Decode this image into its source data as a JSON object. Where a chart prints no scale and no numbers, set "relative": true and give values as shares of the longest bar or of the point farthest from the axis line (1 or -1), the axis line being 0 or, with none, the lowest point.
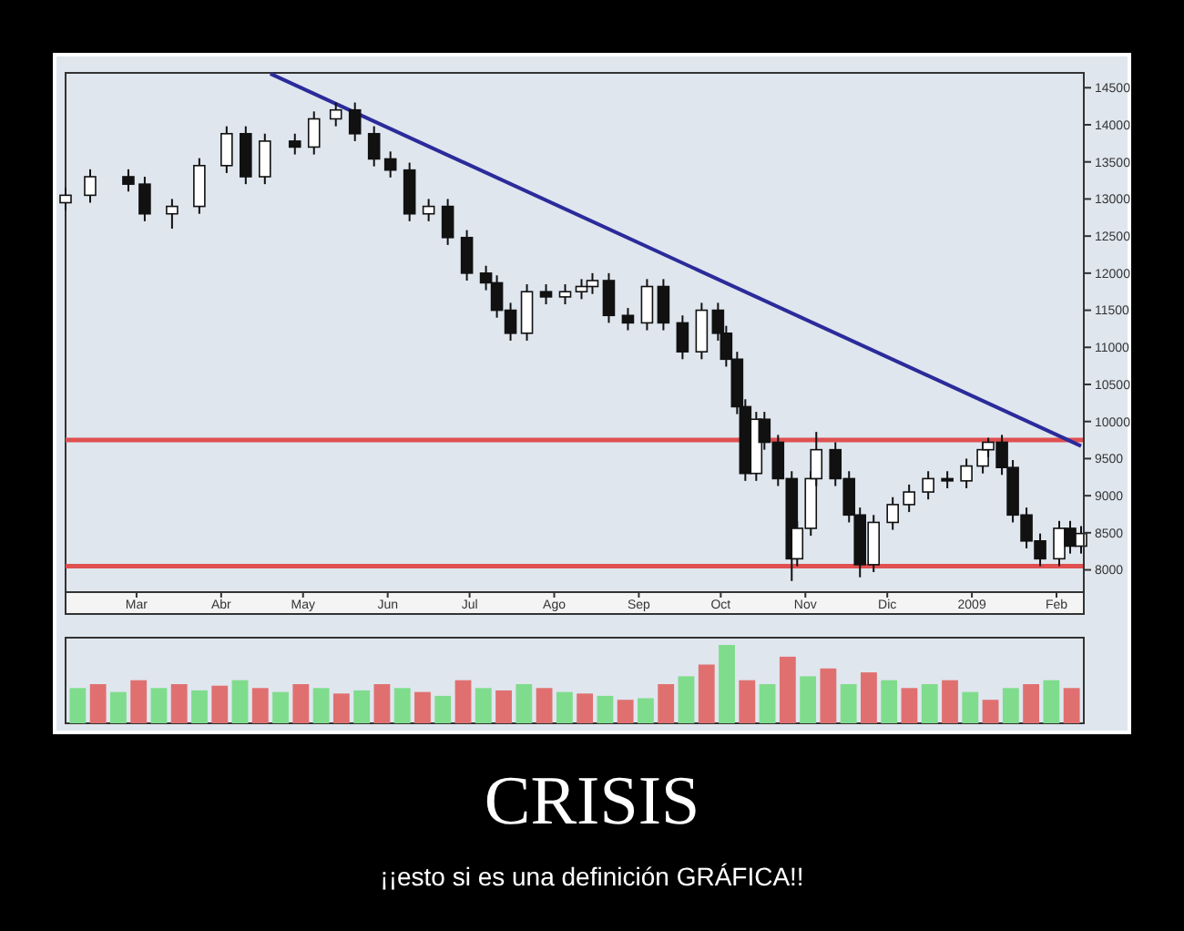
{
  "chart_data": [
    {
      "type": "candlestick",
      "title": "CRISIS",
      "subtitle": "¡¡esto si es una definición GRÁFICA!!",
      "x": [
        "2008-02-04",
        "2008-02-13",
        "2008-02-27",
        "2008-03-04",
        "2008-03-14",
        "2008-03-24",
        "2008-04-03",
        "2008-04-10",
        "2008-04-17",
        "2008-04-28",
        "2008-05-05",
        "2008-05-13",
        "2008-05-20",
        "2008-05-27",
        "2008-06-02",
        "2008-06-09",
        "2008-06-16",
        "2008-06-23",
        "2008-06-30",
        "2008-07-07",
        "2008-07-11",
        "2008-07-16",
        "2008-07-22",
        "2008-07-29",
        "2008-08-05",
        "2008-08-11",
        "2008-08-15",
        "2008-08-21",
        "2008-08-28",
        "2008-09-04",
        "2008-09-10",
        "2008-09-17",
        "2008-09-24",
        "2008-09-30",
        "2008-10-03",
        "2008-10-07",
        "2008-10-10",
        "2008-10-14",
        "2008-10-17",
        "2008-10-22",
        "2008-10-27",
        "2008-10-29",
        "2008-11-03",
        "2008-11-05",
        "2008-11-12",
        "2008-11-17",
        "2008-11-21",
        "2008-11-26",
        "2008-12-03",
        "2008-12-09",
        "2008-12-16",
        "2008-12-23",
        "2008-12-30",
        "2009-01-05",
        "2009-01-07",
        "2009-01-12",
        "2009-01-16",
        "2009-01-21",
        "2009-01-26",
        "2009-02-02",
        "2009-02-06",
        "2009-02-10"
      ],
      "ohlc": [
        [
          12950,
          13150,
          12850,
          13050
        ],
        [
          13050,
          13400,
          12950,
          13300
        ],
        [
          13300,
          13400,
          13100,
          13200
        ],
        [
          13200,
          13300,
          12700,
          12800
        ],
        [
          12800,
          13000,
          12600,
          12900
        ],
        [
          12900,
          13550,
          12800,
          13450
        ],
        [
          13450,
          13980,
          13350,
          13880
        ],
        [
          13880,
          13980,
          13200,
          13300
        ],
        [
          13300,
          13880,
          13200,
          13780
        ],
        [
          13780,
          13880,
          13600,
          13700
        ],
        [
          13700,
          14180,
          13600,
          14080
        ],
        [
          14080,
          14300,
          13980,
          14200
        ],
        [
          14200,
          14300,
          13780,
          13880
        ],
        [
          13880,
          13980,
          13440,
          13540
        ],
        [
          13540,
          13640,
          13290,
          13390
        ],
        [
          13390,
          13490,
          12700,
          12800
        ],
        [
          12800,
          13000,
          12700,
          12900
        ],
        [
          12900,
          13000,
          12380,
          12480
        ],
        [
          12480,
          12580,
          11900,
          12000
        ],
        [
          12000,
          12100,
          11770,
          11870
        ],
        [
          11870,
          11970,
          11400,
          11500
        ],
        [
          11500,
          11600,
          11090,
          11190
        ],
        [
          11190,
          11850,
          11090,
          11750
        ],
        [
          11750,
          11850,
          11580,
          11680
        ],
        [
          11680,
          11850,
          11580,
          11750
        ],
        [
          11750,
          11920,
          11650,
          11820
        ],
        [
          11820,
          12000,
          11720,
          11900
        ],
        [
          11900,
          12000,
          11330,
          11430
        ],
        [
          11430,
          11530,
          11230,
          11330
        ],
        [
          11330,
          11920,
          11230,
          11820
        ],
        [
          11820,
          11920,
          11230,
          11330
        ],
        [
          11330,
          11430,
          10840,
          10940
        ],
        [
          10940,
          11600,
          10840,
          11500
        ],
        [
          11500,
          11600,
          11090,
          11190
        ],
        [
          11190,
          11290,
          10740,
          10840
        ],
        [
          10840,
          10940,
          10100,
          10200
        ],
        [
          10200,
          10300,
          9200,
          9300
        ],
        [
          9300,
          10130,
          9200,
          10030
        ],
        [
          10030,
          10130,
          9620,
          9720
        ],
        [
          9720,
          9820,
          9130,
          9230
        ],
        [
          9230,
          9330,
          7850,
          8150
        ],
        [
          8150,
          8660,
          8050,
          8560
        ],
        [
          8560,
          9330,
          8460,
          9230
        ],
        [
          9230,
          9860,
          9130,
          9620
        ],
        [
          9620,
          9720,
          9130,
          9230
        ],
        [
          9230,
          9330,
          8640,
          8740
        ],
        [
          8740,
          8840,
          7900,
          8070
        ],
        [
          8070,
          8740,
          7970,
          8640
        ],
        [
          8640,
          8980,
          8540,
          8880
        ],
        [
          8880,
          9150,
          8780,
          9050
        ],
        [
          9050,
          9330,
          8950,
          9230
        ],
        [
          9230,
          9330,
          9100,
          9200
        ],
        [
          9200,
          9500,
          9100,
          9400
        ],
        [
          9400,
          9720,
          9300,
          9620
        ],
        [
          9620,
          9780,
          9520,
          9720
        ],
        [
          9720,
          9820,
          9280,
          9380
        ],
        [
          9380,
          9480,
          8640,
          8740
        ],
        [
          8740,
          8840,
          8290,
          8390
        ],
        [
          8390,
          8490,
          8050,
          8150
        ],
        [
          8150,
          8660,
          8050,
          8560
        ],
        [
          8560,
          8660,
          8220,
          8320
        ],
        [
          8320,
          8590,
          8220,
          8490
        ]
      ],
      "series": [
        {
          "type": "line",
          "color": "#2b2b9a",
          "x": [
            "2008-04-19",
            "2009-02-10"
          ],
          "values": [
            14690,
            9670
          ]
        }
      ],
      "xlim": [
        "2008-02-04",
        "2009-02-11"
      ],
      "xticks": [
        {
          "value": "2008-03-01",
          "label": "Mar"
        },
        {
          "value": "2008-04-01",
          "label": "Abr"
        },
        {
          "value": "2008-05-01",
          "label": "May"
        },
        {
          "value": "2008-06-01",
          "label": "Jun"
        },
        {
          "value": "2008-07-01",
          "label": "Jul"
        },
        {
          "value": "2008-08-01",
          "label": "Ago"
        },
        {
          "value": "2008-09-01",
          "label": "Sep"
        },
        {
          "value": "2008-10-01",
          "label": "Oct"
        },
        {
          "value": "2008-11-01",
          "label": "Nov"
        },
        {
          "value": "2008-12-01",
          "label": "Dic"
        },
        {
          "value": "2009-01-01",
          "label": "2009"
        },
        {
          "value": "2009-02-01",
          "label": "Feb"
        }
      ],
      "ylim": [
        7700,
        14700
      ],
      "yticks": [
        8000,
        8500,
        9000,
        9500,
        10000,
        10500,
        11000,
        11500,
        12000,
        12500,
        13000,
        13500,
        14000,
        14500
      ],
      "ref_lines": [
        {
          "axis": "y",
          "value": 9750,
          "color": "#e05050"
        },
        {
          "axis": "y",
          "value": 8050,
          "color": "#e05050"
        }
      ]
    },
    {
      "type": "bar",
      "relative": true,
      "categories": [
        null,
        null,
        null,
        null,
        null,
        null,
        null,
        null,
        null,
        null,
        null,
        null,
        null,
        null,
        null,
        null,
        null,
        null,
        null,
        null,
        null,
        null,
        null,
        null,
        null,
        null,
        null,
        null,
        null,
        null,
        null,
        null,
        null,
        null,
        null,
        null,
        null,
        null,
        null,
        null,
        null,
        null,
        null,
        null,
        null,
        null,
        null,
        null,
        null,
        null
      ],
      "values": [
        0.45,
        0.5,
        0.4,
        0.55,
        0.45,
        0.5,
        0.42,
        0.48,
        0.55,
        0.45,
        0.4,
        0.5,
        0.45,
        0.38,
        0.42,
        0.5,
        0.45,
        0.4,
        0.35,
        0.55,
        0.45,
        0.42,
        0.5,
        0.45,
        0.4,
        0.38,
        0.35,
        0.3,
        0.32,
        0.5,
        0.6,
        0.75,
        1,
        0.55,
        0.5,
        0.85,
        0.6,
        0.7,
        0.5,
        0.65,
        0.55,
        0.45,
        0.5,
        0.55,
        0.4,
        0.3,
        0.45,
        0.5,
        0.55,
        0.45
      ],
      "colors": [
        "#7fdc8c",
        "#e07070",
        "#7fdc8c",
        "#e07070",
        "#7fdc8c",
        "#e07070",
        "#7fdc8c",
        "#e07070",
        "#7fdc8c",
        "#e07070",
        "#7fdc8c",
        "#e07070",
        "#7fdc8c",
        "#e07070",
        "#7fdc8c",
        "#e07070",
        "#7fdc8c",
        "#e07070",
        "#7fdc8c",
        "#e07070",
        "#7fdc8c",
        "#e07070",
        "#7fdc8c",
        "#e07070",
        "#7fdc8c",
        "#e07070",
        "#7fdc8c",
        "#e07070",
        "#7fdc8c",
        "#e07070",
        "#7fdc8c",
        "#e07070",
        "#7fdc8c",
        "#e07070",
        "#7fdc8c",
        "#e07070",
        "#7fdc8c",
        "#e07070",
        "#7fdc8c",
        "#e07070",
        "#7fdc8c",
        "#e07070",
        "#7fdc8c",
        "#e07070",
        "#7fdc8c",
        "#e07070",
        "#7fdc8c",
        "#e07070",
        "#7fdc8c",
        "#e07070"
      ]
    }
  ]
}
